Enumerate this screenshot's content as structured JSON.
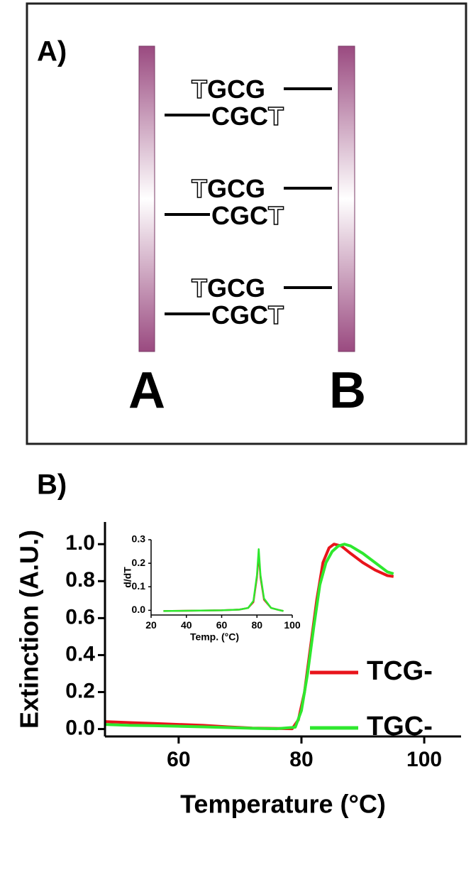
{
  "diagram": {
    "label": "A)",
    "pillars": [
      {
        "label": "A"
      },
      {
        "label": "B"
      }
    ],
    "duplexes": [
      {
        "top": {
          "outlined": "T",
          "filled": "GCG"
        },
        "bottom": {
          "filled": "CGC",
          "outlined": "T"
        }
      },
      {
        "top": {
          "outlined": "T",
          "filled": "GCG"
        },
        "bottom": {
          "filled": "CGC",
          "outlined": "T"
        }
      },
      {
        "top": {
          "outlined": "T",
          "filled": "GCG"
        },
        "bottom": {
          "filled": "CGC",
          "outlined": "T"
        }
      }
    ]
  },
  "panel_b_label": "B)",
  "chart_data": [
    {
      "type": "line",
      "xlabel": "Temperature (°C)",
      "ylabel": "Extinction (A.U.)",
      "xlim": [
        48,
        106
      ],
      "ylim": [
        -0.04,
        1.12
      ],
      "xticks": [
        60,
        80,
        100
      ],
      "yticks": [
        {
          "value": 0,
          "label": "0.0"
        },
        {
          "value": 0.2,
          "label": "0.2"
        },
        {
          "value": 0.4,
          "label": "0.4"
        },
        {
          "value": 0.6,
          "label": "0.6"
        },
        {
          "value": 0.8,
          "label": "0.8"
        },
        {
          "value": 1,
          "label": "1.0"
        }
      ],
      "legend": "lower right",
      "series": [
        {
          "name": "TCG-",
          "color": "#e8141b",
          "x": [
            48,
            52,
            56,
            60,
            64,
            68,
            72,
            76,
            78.5,
            79.5,
            80.5,
            81.5,
            82.5,
            83.5,
            84.5,
            85.3,
            86.5,
            88,
            90,
            92,
            94,
            95
          ],
          "values": [
            0.04,
            0.035,
            0.03,
            0.025,
            0.02,
            0.012,
            0.005,
            0.003,
            0.002,
            0.05,
            0.2,
            0.45,
            0.7,
            0.9,
            0.98,
            1.0,
            0.99,
            0.95,
            0.9,
            0.86,
            0.83,
            0.825
          ]
        },
        {
          "name": "TGC-",
          "color": "#2ee82e",
          "x": [
            48,
            52,
            56,
            60,
            64,
            68,
            72,
            76,
            79,
            80,
            81,
            82,
            83,
            84,
            85,
            86,
            87,
            88,
            90,
            92,
            94,
            95
          ],
          "values": [
            0.025,
            0.02,
            0.018,
            0.015,
            0.012,
            0.008,
            0.004,
            0.002,
            0.01,
            0.1,
            0.3,
            0.55,
            0.78,
            0.9,
            0.96,
            0.99,
            1.0,
            0.99,
            0.95,
            0.9,
            0.85,
            0.84
          ]
        }
      ]
    },
    {
      "type": "line",
      "xlabel": "Temp. (°C)",
      "ylabel": "d/dT",
      "xlim": [
        20,
        100
      ],
      "ylim": [
        -0.02,
        0.3
      ],
      "xticks": [
        20,
        40,
        60,
        80,
        100
      ],
      "yticks": [
        {
          "value": 0,
          "label": "0.0"
        },
        {
          "value": 0.1,
          "label": "0.1"
        },
        {
          "value": 0.2,
          "label": "0.2"
        },
        {
          "value": 0.3,
          "label": "0.3"
        }
      ],
      "series": [
        {
          "color": "#e8141b",
          "x": [
            27,
            40,
            60,
            70,
            75,
            78,
            80,
            81,
            82,
            84,
            88,
            92,
            95
          ],
          "values": [
            -0.003,
            -0.002,
            0,
            0.003,
            0.01,
            0.035,
            0.14,
            0.24,
            0.14,
            0.045,
            0.01,
            0.002,
            -0.003
          ]
        },
        {
          "color": "#2ee82e",
          "x": [
            27,
            40,
            60,
            70,
            75,
            78,
            80,
            81,
            82,
            84,
            88,
            92,
            95
          ],
          "values": [
            -0.003,
            -0.002,
            0,
            0.003,
            0.01,
            0.04,
            0.15,
            0.26,
            0.15,
            0.05,
            0.01,
            0.002,
            -0.003
          ]
        }
      ]
    }
  ]
}
